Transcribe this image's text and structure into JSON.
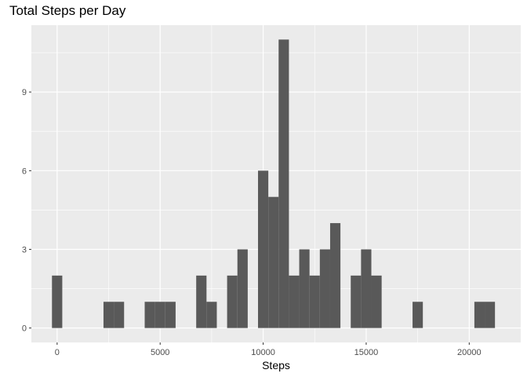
{
  "chart_data": {
    "type": "bar",
    "subtype": "histogram",
    "title": "Total Steps per Day",
    "xlabel": "Steps",
    "ylabel": "",
    "xlim": [
      -1250,
      22500
    ],
    "ylim": [
      -0.55,
      11.55
    ],
    "x_ticks": [
      0,
      5000,
      10000,
      15000,
      20000
    ],
    "x_tick_labels": [
      "0",
      "5000",
      "10000",
      "15000",
      "20000"
    ],
    "y_ticks": [
      0,
      3,
      6,
      9
    ],
    "y_tick_labels": [
      "0",
      "3",
      "6",
      "9"
    ],
    "bin_width": 500,
    "bins": [
      {
        "start": -250,
        "end": 250,
        "count": 2
      },
      {
        "start": 2250,
        "end": 2750,
        "count": 1
      },
      {
        "start": 2750,
        "end": 3250,
        "count": 1
      },
      {
        "start": 4250,
        "end": 4750,
        "count": 1
      },
      {
        "start": 4750,
        "end": 5250,
        "count": 1
      },
      {
        "start": 5250,
        "end": 5750,
        "count": 1
      },
      {
        "start": 6750,
        "end": 7250,
        "count": 2
      },
      {
        "start": 7250,
        "end": 7750,
        "count": 1
      },
      {
        "start": 8250,
        "end": 8750,
        "count": 2
      },
      {
        "start": 8750,
        "end": 9250,
        "count": 3
      },
      {
        "start": 9750,
        "end": 10250,
        "count": 6
      },
      {
        "start": 10250,
        "end": 10750,
        "count": 5
      },
      {
        "start": 10750,
        "end": 11250,
        "count": 11
      },
      {
        "start": 11250,
        "end": 11750,
        "count": 2
      },
      {
        "start": 11750,
        "end": 12250,
        "count": 3
      },
      {
        "start": 12250,
        "end": 12750,
        "count": 2
      },
      {
        "start": 12750,
        "end": 13250,
        "count": 3
      },
      {
        "start": 13250,
        "end": 13750,
        "count": 4
      },
      {
        "start": 14250,
        "end": 14750,
        "count": 2
      },
      {
        "start": 14750,
        "end": 15250,
        "count": 3
      },
      {
        "start": 15250,
        "end": 15750,
        "count": 2
      },
      {
        "start": 17250,
        "end": 17750,
        "count": 1
      },
      {
        "start": 20250,
        "end": 20750,
        "count": 1
      },
      {
        "start": 20750,
        "end": 21250,
        "count": 1
      }
    ],
    "grid": true,
    "legend": "none",
    "colors": {
      "panel_background": "#ebebeb",
      "grid_major": "#ffffff",
      "bar_fill": "#595959",
      "tick_label": "#4d4d4d"
    }
  }
}
